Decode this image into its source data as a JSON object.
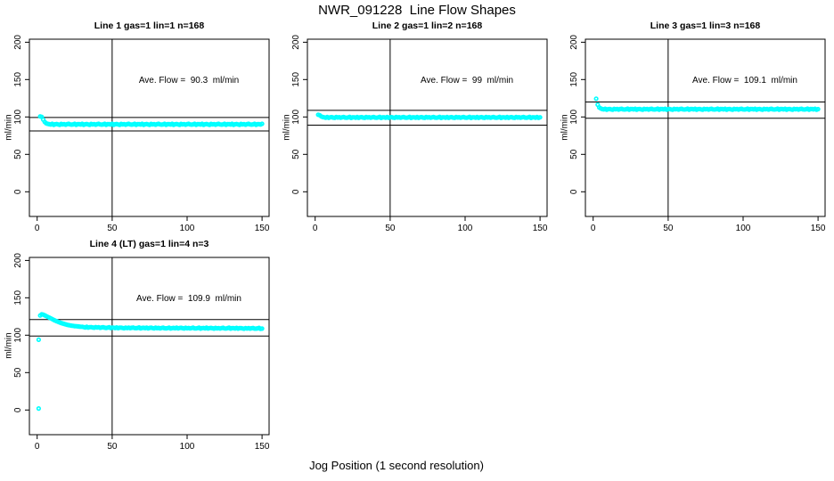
{
  "title": "NWR_091228  Line Flow Shapes",
  "xlabel": "Jog Position (1 second resolution)",
  "colors": {
    "points": "#00ffff",
    "axis": "#000000",
    "background": "#ffffff"
  },
  "chart_data": {
    "type": "scatter",
    "title": "NWR_091228  Line Flow Shapes",
    "xlabel": "Jog Position (1 second resolution)",
    "ylabel": "ml/min",
    "point_color": "#00ffff",
    "axis_color": "#000000",
    "grid": false,
    "legend": "none",
    "xticks": [
      0,
      50,
      100,
      150
    ],
    "yticks": [
      0,
      50,
      100,
      150,
      200
    ],
    "xlim": [
      -5.2,
      154.7
    ],
    "ylim": [
      -33,
      204
    ],
    "vline_x": 50,
    "panels": [
      {
        "title": "Line 1 gas=1 lin=1 n=168",
        "line": 1,
        "gas": 1,
        "lin": 1,
        "n": 168,
        "ave_flow": 90.3,
        "annotation": "Ave. Flow =  90.3  ml/min",
        "hlines": [
          99.3,
          81.3
        ],
        "series": {
          "x_start": 2,
          "step": 1,
          "y": [
            100.8,
            100.2,
            96.5,
            93.4,
            91.6,
            90.8,
            90.4,
            89.9,
            90.8,
            89.6,
            90.3,
            90.6,
            90.0,
            89.6,
            90.7,
            90.1,
            90.5,
            89.7,
            90.4,
            90.8,
            90.0,
            89.8,
            90.2,
            90.9,
            89.5,
            90.4,
            90.4,
            89.9,
            90.8,
            89.6,
            90.3,
            90.6,
            90.0,
            89.6,
            90.7,
            90.1,
            90.5,
            89.7,
            90.4,
            90.8,
            90.0,
            89.8,
            90.2,
            90.9,
            89.5,
            90.4,
            90.4,
            89.9,
            90.8,
            89.6,
            90.3,
            90.6,
            90.0,
            89.6,
            90.7,
            90.1,
            90.5,
            89.7,
            90.4,
            90.8,
            90.0,
            89.8,
            90.2,
            90.9,
            89.5,
            90.4,
            90.4,
            89.9,
            90.8,
            89.6,
            90.3,
            90.6,
            90.0,
            89.6,
            90.7,
            90.1,
            90.5,
            89.7,
            90.4,
            90.8,
            90.0,
            89.8,
            90.2,
            90.9,
            89.5,
            90.4,
            90.4,
            89.9,
            90.8,
            89.6,
            90.3,
            90.6,
            90.0,
            89.6,
            90.7,
            90.1,
            90.5,
            89.7,
            90.4,
            90.8,
            90.0,
            89.8,
            90.2,
            90.9,
            89.5,
            90.4,
            90.4,
            89.9,
            90.8,
            89.6,
            90.3,
            90.6,
            90.0,
            89.6,
            90.7,
            90.1,
            90.5,
            89.7,
            90.4,
            90.8,
            90.0,
            89.8,
            90.2,
            90.9,
            89.5,
            90.4,
            90.4,
            89.9,
            90.8,
            89.6,
            90.3,
            90.6,
            90.0,
            89.6,
            90.7,
            90.1,
            90.5,
            89.7,
            90.4,
            90.8,
            90.0,
            89.8,
            90.2,
            90.9,
            89.5,
            90.4,
            90.4,
            89.9,
            90.8
          ]
        },
        "extra_points": []
      },
      {
        "title": "Line 2 gas=1 lin=2 n=168",
        "line": 2,
        "gas": 1,
        "lin": 2,
        "n": 168,
        "ave_flow": 99,
        "annotation": "Ave. Flow =  99  ml/min",
        "hlines": [
          108.9,
          89.1
        ],
        "series": {
          "x_start": 2,
          "step": 1,
          "y": [
            103.0,
            102.4,
            100.8,
            99.9,
            99.6,
            99.1,
            100.0,
            98.8,
            99.5,
            99.8,
            99.2,
            98.8,
            99.9,
            99.3,
            99.7,
            98.9,
            99.6,
            100.0,
            99.2,
            99.0,
            99.4,
            100.1,
            98.7,
            99.6,
            99.6,
            99.1,
            100.0,
            98.8,
            99.5,
            99.8,
            99.2,
            98.8,
            99.9,
            99.3,
            99.7,
            98.9,
            99.6,
            100.0,
            99.2,
            99.0,
            99.4,
            100.1,
            98.7,
            99.6,
            99.6,
            99.1,
            100.0,
            98.8,
            99.5,
            99.8,
            99.2,
            98.8,
            99.9,
            99.3,
            99.7,
            98.9,
            99.6,
            100.0,
            99.2,
            99.0,
            99.4,
            100.1,
            98.7,
            99.6,
            99.6,
            99.1,
            100.0,
            98.8,
            99.5,
            99.8,
            99.2,
            98.8,
            99.9,
            99.3,
            99.7,
            98.9,
            99.6,
            100.0,
            99.2,
            99.0,
            99.4,
            100.1,
            98.7,
            99.6,
            99.6,
            99.1,
            100.0,
            98.8,
            99.5,
            99.8,
            99.2,
            98.8,
            99.9,
            99.3,
            99.7,
            98.9,
            99.6,
            100.0,
            99.2,
            99.0,
            99.4,
            100.1,
            98.7,
            99.6,
            99.6,
            99.1,
            100.0,
            98.8,
            99.5,
            99.8,
            99.2,
            98.8,
            99.9,
            99.3,
            99.7,
            98.9,
            99.6,
            100.0,
            99.2,
            99.0,
            99.4,
            100.1,
            98.7,
            99.6,
            99.6,
            99.1,
            100.0,
            98.8,
            99.5,
            99.8,
            99.2,
            98.8,
            99.9,
            99.3,
            99.7,
            98.9,
            99.6,
            100.0,
            99.2,
            99.0,
            99.4,
            100.1,
            98.7,
            99.6,
            99.6,
            99.1,
            100.0,
            98.8,
            99.5
          ]
        },
        "extra_points": []
      },
      {
        "title": "Line 3 gas=1 lin=3 n=168",
        "line": 3,
        "gas": 1,
        "lin": 3,
        "n": 168,
        "ave_flow": 109.1,
        "annotation": "Ave. Flow =  109.1  ml/min",
        "hlines": [
          120.0,
          98.2
        ],
        "series": {
          "x_start": 2,
          "step": 1,
          "y": [
            124.5,
            116.5,
            112.8,
            111.5,
            110.6,
            110.1,
            111.0,
            109.8,
            110.5,
            110.8,
            110.2,
            109.8,
            110.9,
            110.3,
            110.7,
            109.9,
            110.6,
            111.0,
            110.2,
            110.0,
            110.4,
            111.1,
            109.7,
            110.6,
            110.6,
            110.1,
            111.0,
            109.8,
            110.5,
            110.8,
            110.2,
            109.8,
            110.9,
            110.3,
            110.7,
            109.9,
            110.6,
            111.0,
            110.2,
            110.0,
            110.4,
            111.1,
            109.7,
            110.6,
            110.6,
            110.1,
            111.0,
            109.8,
            110.5,
            110.8,
            110.2,
            109.8,
            110.9,
            110.3,
            110.7,
            109.9,
            110.6,
            111.0,
            110.2,
            110.0,
            110.4,
            111.1,
            109.7,
            110.6,
            110.6,
            110.1,
            111.0,
            109.8,
            110.5,
            110.8,
            110.2,
            109.8,
            110.9,
            110.3,
            110.7,
            109.9,
            110.6,
            111.0,
            110.2,
            110.0,
            110.4,
            111.1,
            109.7,
            110.6,
            110.6,
            110.1,
            111.0,
            109.8,
            110.5,
            110.8,
            110.2,
            109.8,
            110.9,
            110.3,
            110.7,
            109.9,
            110.6,
            111.0,
            110.2,
            110.0,
            110.4,
            111.1,
            109.7,
            110.6,
            110.6,
            110.1,
            111.0,
            109.8,
            110.5,
            110.8,
            110.2,
            109.8,
            110.9,
            110.3,
            110.7,
            109.9,
            110.6,
            111.0,
            110.2,
            110.0,
            110.4,
            111.1,
            109.7,
            110.6,
            110.6,
            110.1,
            111.0,
            109.8,
            110.5,
            110.8,
            110.2,
            109.8,
            110.9,
            110.3,
            110.7,
            109.9,
            110.6,
            111.0,
            110.2,
            110.0,
            110.4,
            111.1,
            109.7,
            110.6,
            110.6,
            110.1,
            111.0,
            109.8,
            110.5
          ]
        },
        "extra_points": []
      },
      {
        "title": "Line 4 (LT) gas=1 lin=4 n=3",
        "line": 4,
        "line_label": "LT",
        "gas": 1,
        "lin": 4,
        "n": 3,
        "ave_flow": 109.9,
        "annotation": "Ave. Flow =  109.9  ml/min",
        "hlines": [
          120.9,
          98.9
        ],
        "series": {
          "x_start": 2,
          "step": 1,
          "y": [
            126.3,
            127.9,
            127.6,
            126.6,
            125.6,
            124.6,
            123.6,
            122.6,
            121.6,
            120.5,
            119.6,
            118.7,
            117.9,
            117.1,
            116.4,
            115.7,
            115.1,
            114.5,
            114.0,
            113.5,
            113.1,
            112.8,
            112.5,
            112.2,
            112.0,
            111.8,
            111.6,
            111.4,
            111.3,
            110.9,
            110.4,
            111.2,
            110.2,
            110.7,
            110.9,
            110.4,
            110.0,
            110.9,
            110.3,
            110.6,
            109.9,
            110.4,
            110.8,
            110.0,
            109.8,
            110.2,
            110.8,
            109.6,
            110.1,
            110.1,
            109.6,
            110.4,
            109.4,
            110.0,
            110.2,
            109.7,
            109.3,
            110.2,
            109.6,
            110.0,
            109.4,
            109.9,
            110.3,
            109.5,
            109.4,
            109.8,
            110.4,
            109.2,
            109.8,
            109.9,
            109.4,
            110.2,
            109.2,
            109.8,
            110.0,
            109.5,
            109.1,
            110.0,
            109.4,
            109.8,
            109.2,
            109.7,
            110.1,
            109.3,
            109.2,
            109.6,
            110.2,
            109.0,
            109.6,
            109.8,
            109.3,
            110.1,
            109.1,
            109.7,
            109.9,
            109.4,
            109.0,
            109.9,
            109.3,
            109.7,
            109.1,
            109.6,
            110.0,
            109.2,
            109.1,
            109.5,
            110.1,
            108.9,
            109.5,
            109.7,
            109.2,
            110.0,
            109.0,
            109.6,
            109.8,
            109.3,
            108.9,
            109.8,
            109.2,
            109.6,
            109.0,
            109.5,
            109.9,
            109.1,
            109.0,
            109.4,
            110.0,
            108.8,
            109.4,
            109.5,
            109.0,
            109.8,
            108.8,
            109.4,
            109.6,
            109.1,
            108.7,
            109.6,
            109.0,
            109.4,
            108.8,
            109.3,
            109.7,
            108.9,
            108.8,
            109.2,
            109.8,
            108.6,
            108.9
          ]
        },
        "extra_points": [
          [
            1,
            2
          ],
          [
            1,
            94
          ]
        ]
      }
    ]
  }
}
